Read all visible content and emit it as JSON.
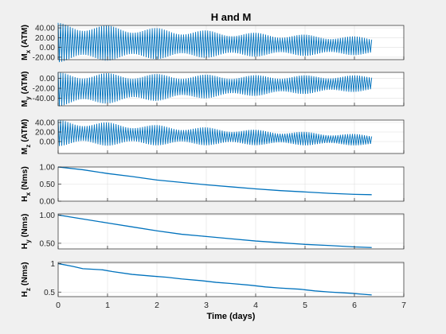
{
  "figure_title": "H and M",
  "chart_data": [
    {
      "type": "line",
      "id": "mx",
      "ylabel_main": "M",
      "ylabel_sub": "x",
      "ylabel_unit": " (ATM)",
      "ylim": [
        -25,
        45
      ],
      "yticks": [
        40,
        20,
        0,
        -20
      ],
      "ytick_labels": [
        "40.00",
        "20.00",
        "0.00",
        "-20.00"
      ],
      "xlim": [
        0,
        7
      ],
      "series": [
        {
          "x_start": 0,
          "x_end": 6.35,
          "cycles": 130,
          "center": [
            [
              0,
              10
            ],
            [
              6.35,
              3
            ]
          ],
          "envelope_base": [
            [
              0,
              33
            ],
            [
              2,
              26
            ],
            [
              4,
              20
            ],
            [
              6.35,
              15
            ]
          ],
          "beat_amplitude": 0.22,
          "beat_period_days": 1.0
        }
      ]
    },
    {
      "type": "line",
      "id": "my",
      "ylabel_main": "M",
      "ylabel_sub": "y",
      "ylabel_unit": " (ATM)",
      "ylim": [
        -55,
        12
      ],
      "yticks": [
        0,
        -20,
        -40
      ],
      "ytick_labels": [
        "0.00",
        "-20.00",
        "-40.00"
      ],
      "xlim": [
        0,
        7
      ],
      "series": [
        {
          "x_start": 0,
          "x_end": 6.35,
          "cycles": 130,
          "center": [
            [
              0,
              -22
            ],
            [
              6.35,
              -10
            ]
          ],
          "envelope_base": [
            [
              0,
              28
            ],
            [
              2,
              22
            ],
            [
              4,
              17
            ],
            [
              6.35,
              13
            ]
          ],
          "beat_amplitude": 0.22,
          "beat_period_days": 1.0
        }
      ]
    },
    {
      "type": "line",
      "id": "mz",
      "ylabel_main": "M",
      "ylabel_sub": "z",
      "ylabel_unit": " (ATM)",
      "ylim": [
        -25,
        45
      ],
      "yticks": [
        40,
        20,
        0
      ],
      "ytick_labels": [
        "40.00",
        "20.00",
        "0.00"
      ],
      "xlim": [
        0,
        7
      ],
      "series": [
        {
          "x_start": 0,
          "x_end": 6.35,
          "cycles": 130,
          "center": [
            [
              0,
              18
            ],
            [
              6.35,
              3
            ]
          ],
          "envelope_base": [
            [
              0,
              22
            ],
            [
              2,
              17
            ],
            [
              4,
              13
            ],
            [
              6.35,
              9
            ]
          ],
          "beat_amplitude": 0.25,
          "beat_period_days": 1.0
        }
      ]
    },
    {
      "type": "line",
      "id": "hx",
      "ylabel_main": "H",
      "ylabel_sub": "x",
      "ylabel_unit": " (Nms)",
      "ylim": [
        0,
        1
      ],
      "yticks": [
        1,
        0.5,
        0
      ],
      "ytick_labels": [
        "1.00",
        "0.50",
        "0.00"
      ],
      "xlim": [
        0,
        7
      ],
      "series": [
        {
          "x": [
            0,
            0.5,
            1,
            1.5,
            2,
            2.5,
            3,
            3.5,
            4,
            4.5,
            5,
            5.5,
            6,
            6.35
          ],
          "y": [
            1.0,
            0.92,
            0.81,
            0.72,
            0.62,
            0.55,
            0.48,
            0.42,
            0.36,
            0.31,
            0.27,
            0.23,
            0.2,
            0.19
          ]
        }
      ]
    },
    {
      "type": "line",
      "id": "hy",
      "ylabel_main": "H",
      "ylabel_sub": "y",
      "ylabel_unit": " (Nms)",
      "ylim": [
        0.4,
        1.02
      ],
      "yticks": [
        1,
        0.5
      ],
      "ytick_labels": [
        "1.00",
        "0.50"
      ],
      "xlim": [
        0,
        7
      ],
      "series": [
        {
          "x": [
            0,
            0.5,
            1,
            1.5,
            2,
            2.5,
            3,
            3.5,
            4,
            4.5,
            5,
            5.5,
            6,
            6.35
          ],
          "y": [
            1.0,
            0.93,
            0.86,
            0.79,
            0.72,
            0.66,
            0.62,
            0.58,
            0.54,
            0.51,
            0.48,
            0.46,
            0.435,
            0.425
          ]
        }
      ]
    },
    {
      "type": "line",
      "id": "hz",
      "ylabel_main": "H",
      "ylabel_sub": "z",
      "ylabel_unit": " (Nms)",
      "ylim": [
        0.42,
        1.02
      ],
      "yticks": [
        1,
        0.5
      ],
      "ytick_labels": [
        "1",
        "0.5"
      ],
      "xlim": [
        0,
        7
      ],
      "xticks": [
        0,
        1,
        2,
        3,
        4,
        5,
        6,
        7
      ],
      "xlabel": "Time (days)",
      "series": [
        {
          "x": [
            0,
            0.3,
            0.5,
            0.9,
            1.1,
            1.5,
            1.9,
            2.2,
            2.5,
            2.9,
            3.2,
            3.5,
            3.9,
            4.2,
            4.5,
            4.9,
            5.2,
            5.5,
            5.9,
            6.35
          ],
          "y": [
            1.0,
            0.95,
            0.91,
            0.89,
            0.86,
            0.81,
            0.78,
            0.76,
            0.73,
            0.7,
            0.67,
            0.65,
            0.62,
            0.59,
            0.57,
            0.55,
            0.52,
            0.5,
            0.48,
            0.45
          ]
        }
      ]
    }
  ],
  "colors": {
    "line": "#0072bd",
    "axes_bg": "#ffffff",
    "figure_bg": "#f0f0f0",
    "grid": "#dfdfdf",
    "axis": "#262626"
  }
}
